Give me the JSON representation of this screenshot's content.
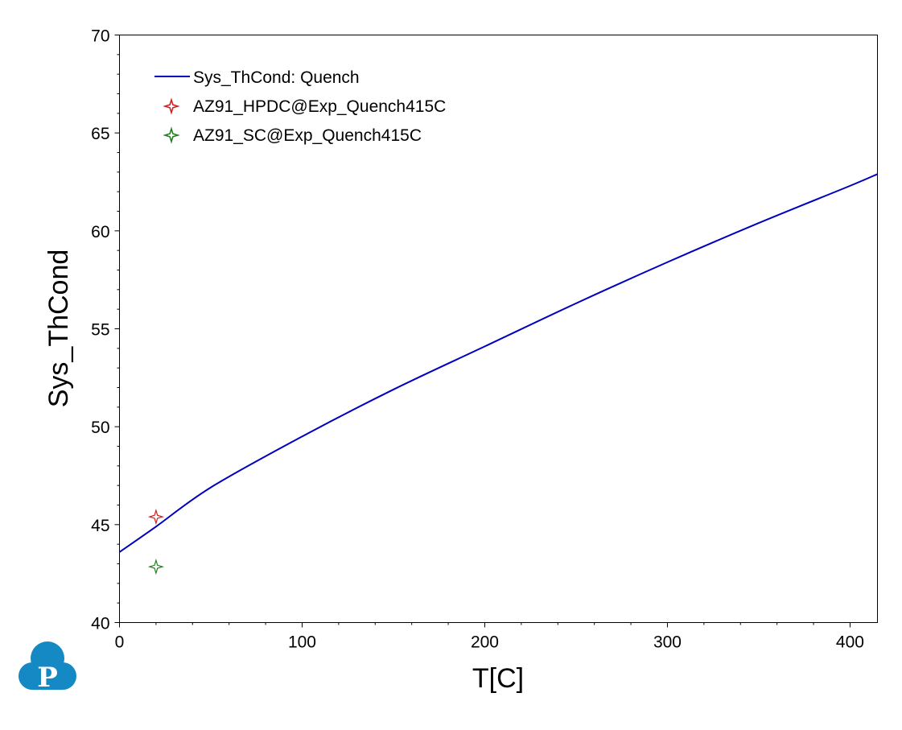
{
  "chart_data": {
    "type": "line",
    "xlabel": "T[C]",
    "ylabel": "Sys_ThCond",
    "xlim": [
      0,
      415
    ],
    "ylim": [
      40,
      70
    ],
    "xticks": [
      0,
      100,
      200,
      300,
      400
    ],
    "yticks": [
      40,
      45,
      50,
      55,
      60,
      65,
      70
    ],
    "grid": false,
    "legend_position": "top-left",
    "series": [
      {
        "name": "Sys_ThCond: Quench",
        "kind": "line",
        "color": "#0000c0",
        "x": [
          0,
          20,
          50,
          100,
          150,
          200,
          250,
          300,
          350,
          400,
          415
        ],
        "y": [
          43.6,
          44.9,
          46.9,
          49.5,
          51.9,
          54.1,
          56.3,
          58.4,
          60.4,
          62.3,
          62.9
        ]
      },
      {
        "name": "AZ91_HPDC@Exp_Quench415C",
        "kind": "marker",
        "marker": "four-point-star",
        "color": "#d02020",
        "x": [
          20
        ],
        "y": [
          45.4
        ]
      },
      {
        "name": "AZ91_SC@Exp_Quench415C",
        "kind": "marker",
        "marker": "four-point-star",
        "color": "#208020",
        "x": [
          20
        ],
        "y": [
          42.85
        ]
      }
    ]
  },
  "logo": {
    "icon": "pandat-cloud-logo-icon",
    "letter": "P",
    "color": "#1589c3"
  }
}
